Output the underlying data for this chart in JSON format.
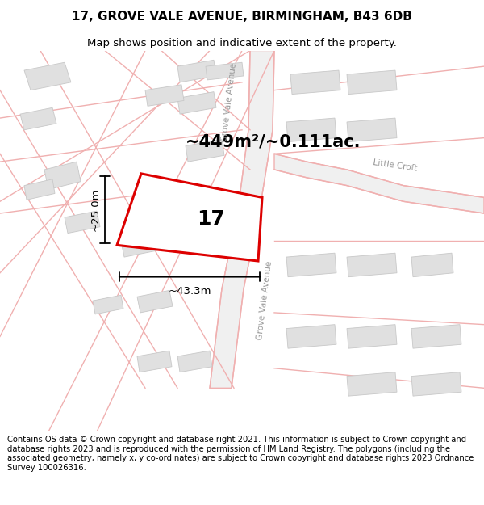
{
  "title_line1": "17, GROVE VALE AVENUE, BIRMINGHAM, B43 6DB",
  "title_line2": "Map shows position and indicative extent of the property.",
  "footer_text": "Contains OS data © Crown copyright and database right 2021. This information is subject to Crown copyright and database rights 2023 and is reproduced with the permission of HM Land Registry. The polygons (including the associated geometry, namely x, y co-ordinates) are subject to Crown copyright and database rights 2023 Ordnance Survey 100026316.",
  "area_label": "~449m²/~0.111ac.",
  "plot_number": "17",
  "dim_width": "~43.3m",
  "dim_height": "~25.0m",
  "bg_color": "#ffffff",
  "map_bg": "#ffffff",
  "building_fill": "#e0e0e0",
  "building_edge": "#c8c8c8",
  "plot_outline_color": "#dd0000",
  "road_color": "#f0b0b0",
  "road_lw": 1.0,
  "title_fontsize": 11,
  "subtitle_fontsize": 9.5,
  "footer_fontsize": 7.2,
  "label_fontsize": 18,
  "area_fontsize": 15,
  "street_label_color": "#999999",
  "dim_fontsize": 9.5
}
